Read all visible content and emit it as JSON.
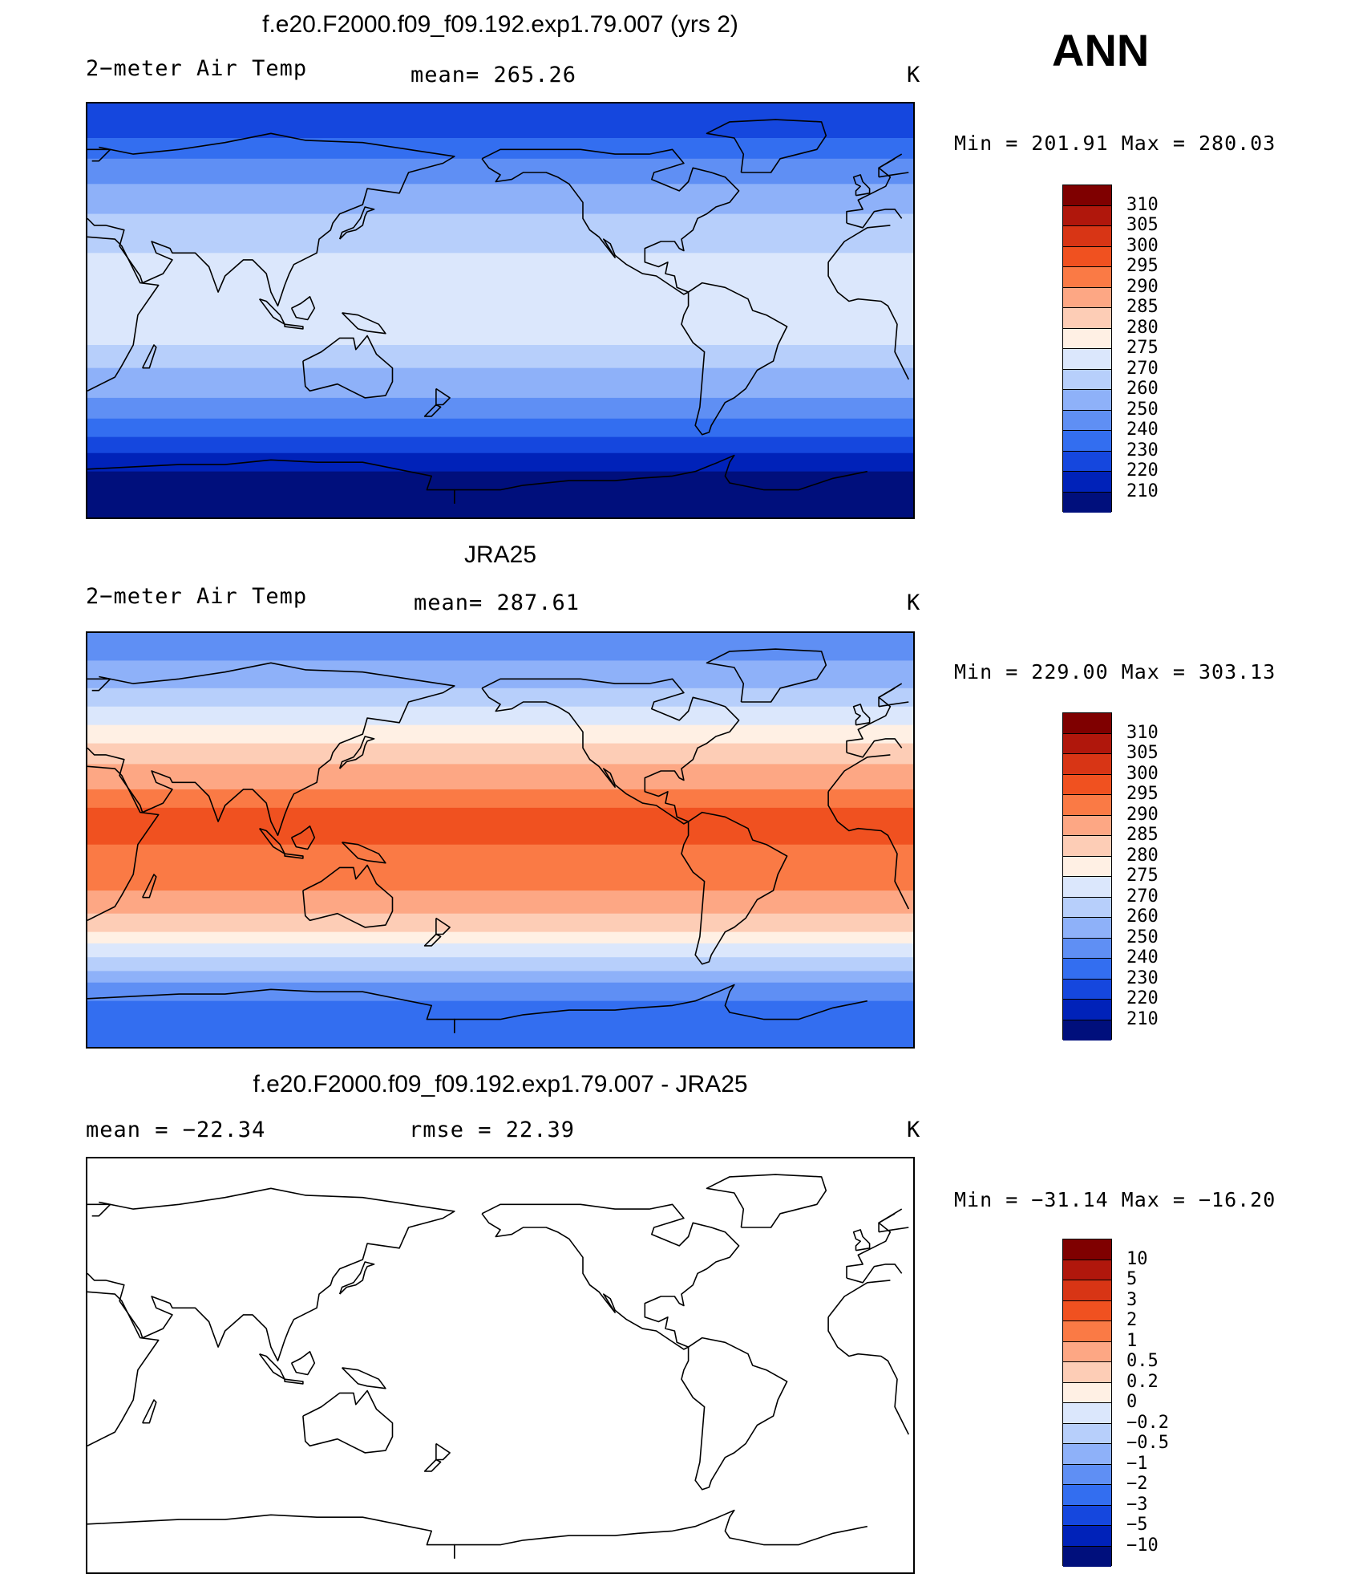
{
  "header": {
    "season": "ANN"
  },
  "panels": [
    {
      "id": "model",
      "title": "f.e20.F2000.f09_f09.192.exp1.79.007 (yrs 2)",
      "left_label": "2−meter Air Temp",
      "center_label": "mean=  265.26",
      "units": "K",
      "minmax": "Min  =  201.91  Max  =  280.03",
      "palette": "temp",
      "levels": [
        "310",
        "305",
        "300",
        "295",
        "290",
        "285",
        "280",
        "275",
        "270",
        "260",
        "250",
        "240",
        "230",
        "220",
        "210"
      ],
      "zones": [
        {
          "lat_top": 90,
          "level": "230"
        },
        {
          "lat_top": 75,
          "level": "240"
        },
        {
          "lat_top": 66,
          "level": "250"
        },
        {
          "lat_top": 55,
          "level": "260"
        },
        {
          "lat_top": 42,
          "level": "270"
        },
        {
          "lat_top": 25,
          "level": "275"
        },
        {
          "lat_top": -15,
          "level": "270"
        },
        {
          "lat_top": -25,
          "level": "260"
        },
        {
          "lat_top": -38,
          "level": "250"
        },
        {
          "lat_top": -47,
          "level": "240"
        },
        {
          "lat_top": -55,
          "level": "230"
        },
        {
          "lat_top": -62,
          "level": "220"
        },
        {
          "lat_top": -70,
          "level": "210"
        }
      ]
    },
    {
      "id": "obs",
      "title": "JRA25",
      "left_label": "2−meter Air Temp",
      "center_label": "mean=  287.61",
      "units": "K",
      "minmax": "Min  =  229.00  Max  =  303.13",
      "palette": "temp",
      "levels": [
        "310",
        "305",
        "300",
        "295",
        "290",
        "285",
        "280",
        "275",
        "270",
        "260",
        "250",
        "240",
        "230",
        "220",
        "210"
      ],
      "zones": [
        {
          "lat_top": 90,
          "level": "250"
        },
        {
          "lat_top": 78,
          "level": "260"
        },
        {
          "lat_top": 66,
          "level": "270"
        },
        {
          "lat_top": 58,
          "level": "275"
        },
        {
          "lat_top": 50,
          "level": "280"
        },
        {
          "lat_top": 42,
          "level": "285"
        },
        {
          "lat_top": 33,
          "level": "290"
        },
        {
          "lat_top": 22,
          "level": "295"
        },
        {
          "lat_top": 14,
          "level": "300"
        },
        {
          "lat_top": -2,
          "level": "295"
        },
        {
          "lat_top": -22,
          "level": "290"
        },
        {
          "lat_top": -32,
          "level": "285"
        },
        {
          "lat_top": -40,
          "level": "280"
        },
        {
          "lat_top": -45,
          "level": "275"
        },
        {
          "lat_top": -51,
          "level": "270"
        },
        {
          "lat_top": -57,
          "level": "260"
        },
        {
          "lat_top": -62,
          "level": "250"
        },
        {
          "lat_top": -70,
          "level": "240"
        }
      ]
    },
    {
      "id": "diff",
      "title": "f.e20.F2000.f09_f09.192.exp1.79.007 - JRA25",
      "left_label": "mean  =  −22.34",
      "center_label": "rmse  =    22.39",
      "units": "K",
      "minmax": "Min  =  −31.14  Max  =  −16.20",
      "palette": "diff",
      "levels": [
        "10",
        "5",
        "3",
        "2",
        "1",
        "0.5",
        "0.2",
        "0",
        "−0.2",
        "−0.5",
        "−1",
        "−2",
        "−3",
        "−5",
        "−10"
      ],
      "zones": []
    }
  ],
  "palettes": {
    "temp": [
      "#7f0000",
      "#b0170c",
      "#d83515",
      "#f05120",
      "#fa7a45",
      "#fda784",
      "#fdcdb6",
      "#fff0e4",
      "#dbe7fc",
      "#b7cffb",
      "#8eb1f9",
      "#5f8ff4",
      "#336ef0",
      "#1547de",
      "#0022b9",
      "#000f7c"
    ],
    "diff": [
      "#7f0000",
      "#b0170c",
      "#d83515",
      "#f05120",
      "#fa7a45",
      "#fda784",
      "#fdcdb6",
      "#fff0e4",
      "#dbe7fc",
      "#b7cffb",
      "#8eb1f9",
      "#5f8ff4",
      "#336ef0",
      "#1547de",
      "#0022b9",
      "#000f7c"
    ]
  }
}
